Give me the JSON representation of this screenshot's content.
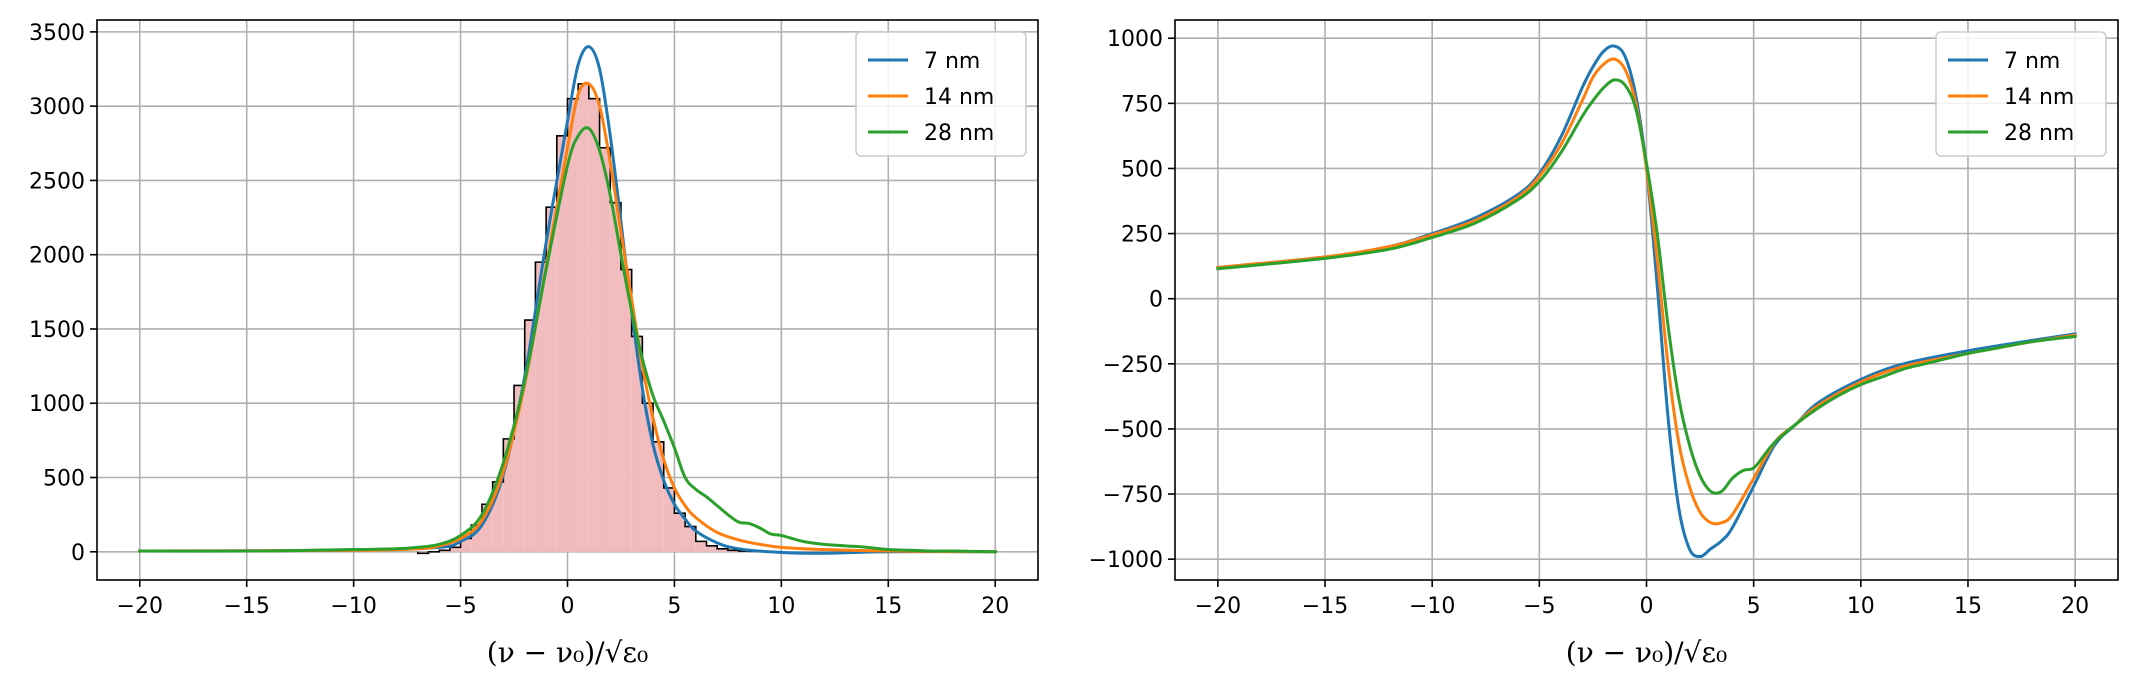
{
  "chart_data": [
    {
      "type": "line",
      "overlay": "histogram",
      "xlabel": "(ν − ν₀)/√ε₀",
      "xlim": [
        -22,
        22
      ],
      "ylim": [
        -190,
        3580
      ],
      "xticks": [
        -20,
        -15,
        -10,
        -5,
        0,
        5,
        10,
        15,
        20
      ],
      "yticks": [
        0,
        500,
        1000,
        1500,
        2000,
        2500,
        3000,
        3500
      ],
      "grid": true,
      "legend": "top-right",
      "histogram": {
        "fill_color": "#f2bcbf",
        "edge_color": "#000000",
        "bin_edges": [
          -7,
          -6.5,
          -6,
          -5.5,
          -5,
          -4.5,
          -4,
          -3.5,
          -3,
          -2.5,
          -2,
          -1.5,
          -1,
          -0.5,
          0,
          0.5,
          1,
          1.5,
          2,
          2.5,
          3,
          3.5,
          4,
          4.5,
          5,
          5.5,
          6,
          6.5,
          7,
          7.5,
          8,
          8.5,
          9,
          9.5,
          10
        ],
        "counts": [
          -10,
          0,
          10,
          30,
          90,
          180,
          320,
          470,
          760,
          1120,
          1560,
          1950,
          2320,
          2800,
          3050,
          3150,
          3050,
          2720,
          2350,
          1900,
          1450,
          1000,
          740,
          430,
          260,
          170,
          70,
          40,
          20,
          10,
          5,
          3,
          2,
          1
        ]
      },
      "series": [
        {
          "name": "7 nm",
          "color": "#1f77b4",
          "x": [
            -20,
            -10,
            -6,
            -5,
            -4,
            -3,
            -2,
            -1,
            0,
            0.5,
            1,
            1.5,
            2,
            2.5,
            3,
            3.5,
            4,
            4.5,
            5,
            5.5,
            6,
            7,
            8,
            10,
            12,
            15,
            20
          ],
          "y": [
            5,
            10,
            30,
            70,
            180,
            520,
            1180,
            2080,
            2900,
            3280,
            3400,
            3250,
            2800,
            2220,
            1620,
            1100,
            720,
            480,
            320,
            220,
            140,
            60,
            20,
            -5,
            -10,
            0,
            0
          ]
        },
        {
          "name": "14 nm",
          "color": "#ff7f0e",
          "x": [
            -20,
            -10,
            -7,
            -6,
            -5,
            -4,
            -3,
            -2,
            -1,
            0,
            0.5,
            1,
            1.5,
            2,
            2.5,
            3,
            3.5,
            4,
            4.5,
            5,
            5.5,
            6,
            7,
            8,
            9,
            10,
            12,
            15,
            20
          ],
          "y": [
            5,
            10,
            20,
            40,
            90,
            210,
            540,
            1130,
            1920,
            2720,
            3080,
            3150,
            3000,
            2620,
            2150,
            1700,
            1250,
            900,
            620,
            430,
            310,
            230,
            130,
            80,
            50,
            30,
            15,
            5,
            0
          ]
        },
        {
          "name": "28 nm",
          "color": "#2ca02c",
          "x": [
            -20,
            -15,
            -12,
            -10,
            -8,
            -7,
            -6,
            -5,
            -4,
            -3,
            -2,
            -1,
            0,
            0.5,
            1,
            1.5,
            2,
            2.5,
            3,
            3.5,
            4,
            4.5,
            5,
            5.5,
            6,
            6.5,
            7,
            7.5,
            8,
            8.5,
            9,
            9.5,
            10,
            11,
            12,
            13,
            14,
            15,
            16,
            17,
            18,
            20
          ],
          "y": [
            5,
            5,
            10,
            15,
            20,
            30,
            50,
            110,
            250,
            600,
            1150,
            1900,
            2600,
            2800,
            2850,
            2700,
            2400,
            2000,
            1620,
            1300,
            1050,
            880,
            700,
            500,
            420,
            370,
            310,
            250,
            200,
            190,
            160,
            120,
            110,
            70,
            50,
            40,
            30,
            15,
            10,
            5,
            5,
            0
          ]
        }
      ]
    },
    {
      "type": "line",
      "xlabel": "(ν − ν₀)/√ε₀",
      "xlim": [
        -22,
        22
      ],
      "ylim": [
        -1080,
        1070
      ],
      "xticks": [
        -20,
        -15,
        -10,
        -5,
        0,
        5,
        10,
        15,
        20
      ],
      "yticks": [
        -1000,
        -750,
        -500,
        -250,
        0,
        250,
        500,
        750,
        1000
      ],
      "grid": true,
      "legend": "top-right",
      "series": [
        {
          "name": "7 nm",
          "color": "#1f77b4",
          "x": [
            -20,
            -15,
            -12,
            -10,
            -8,
            -6,
            -5,
            -4,
            -3,
            -2.5,
            -2,
            -1.5,
            -1,
            -0.5,
            0,
            0.5,
            1,
            1.5,
            2,
            2.5,
            3,
            3.5,
            4,
            5,
            6,
            7,
            8,
            10,
            12,
            15,
            18,
            20
          ],
          "y": [
            120,
            160,
            200,
            250,
            310,
            400,
            480,
            620,
            810,
            890,
            950,
            970,
            930,
            780,
            500,
            50,
            -450,
            -800,
            -960,
            -990,
            -960,
            -930,
            -880,
            -720,
            -560,
            -480,
            -400,
            -310,
            -250,
            -200,
            -160,
            -135
          ]
        },
        {
          "name": "14 nm",
          "color": "#ff7f0e",
          "x": [
            -20,
            -15,
            -12,
            -10,
            -8,
            -6,
            -5,
            -4,
            -3,
            -2.5,
            -2,
            -1.5,
            -1,
            -0.5,
            0,
            0.5,
            1,
            1.5,
            2,
            2.5,
            3,
            3.5,
            4,
            5,
            6,
            7,
            8,
            10,
            12,
            15,
            18,
            20
          ],
          "y": [
            120,
            160,
            200,
            245,
            300,
            390,
            470,
            590,
            760,
            850,
            900,
            920,
            880,
            750,
            500,
            150,
            -250,
            -550,
            -720,
            -820,
            -860,
            -860,
            -830,
            -690,
            -550,
            -480,
            -410,
            -320,
            -260,
            -210,
            -165,
            -140
          ]
        },
        {
          "name": "28 nm",
          "color": "#2ca02c",
          "x": [
            -20,
            -15,
            -12,
            -10,
            -8,
            -6,
            -5,
            -4,
            -3,
            -2.5,
            -2,
            -1.5,
            -1,
            -0.5,
            0,
            0.5,
            1,
            1.5,
            2,
            2.5,
            3,
            3.5,
            4,
            4.5,
            5,
            5.5,
            6,
            7,
            8,
            9,
            10,
            11,
            12,
            13,
            14,
            15,
            16,
            18,
            20
          ],
          "y": [
            115,
            155,
            190,
            235,
            290,
            380,
            450,
            560,
            700,
            760,
            810,
            840,
            820,
            730,
            520,
            250,
            -100,
            -380,
            -560,
            -680,
            -740,
            -740,
            -690,
            -660,
            -650,
            -600,
            -550,
            -480,
            -420,
            -370,
            -330,
            -300,
            -270,
            -250,
            -230,
            -210,
            -195,
            -165,
            -145
          ]
        }
      ]
    }
  ]
}
